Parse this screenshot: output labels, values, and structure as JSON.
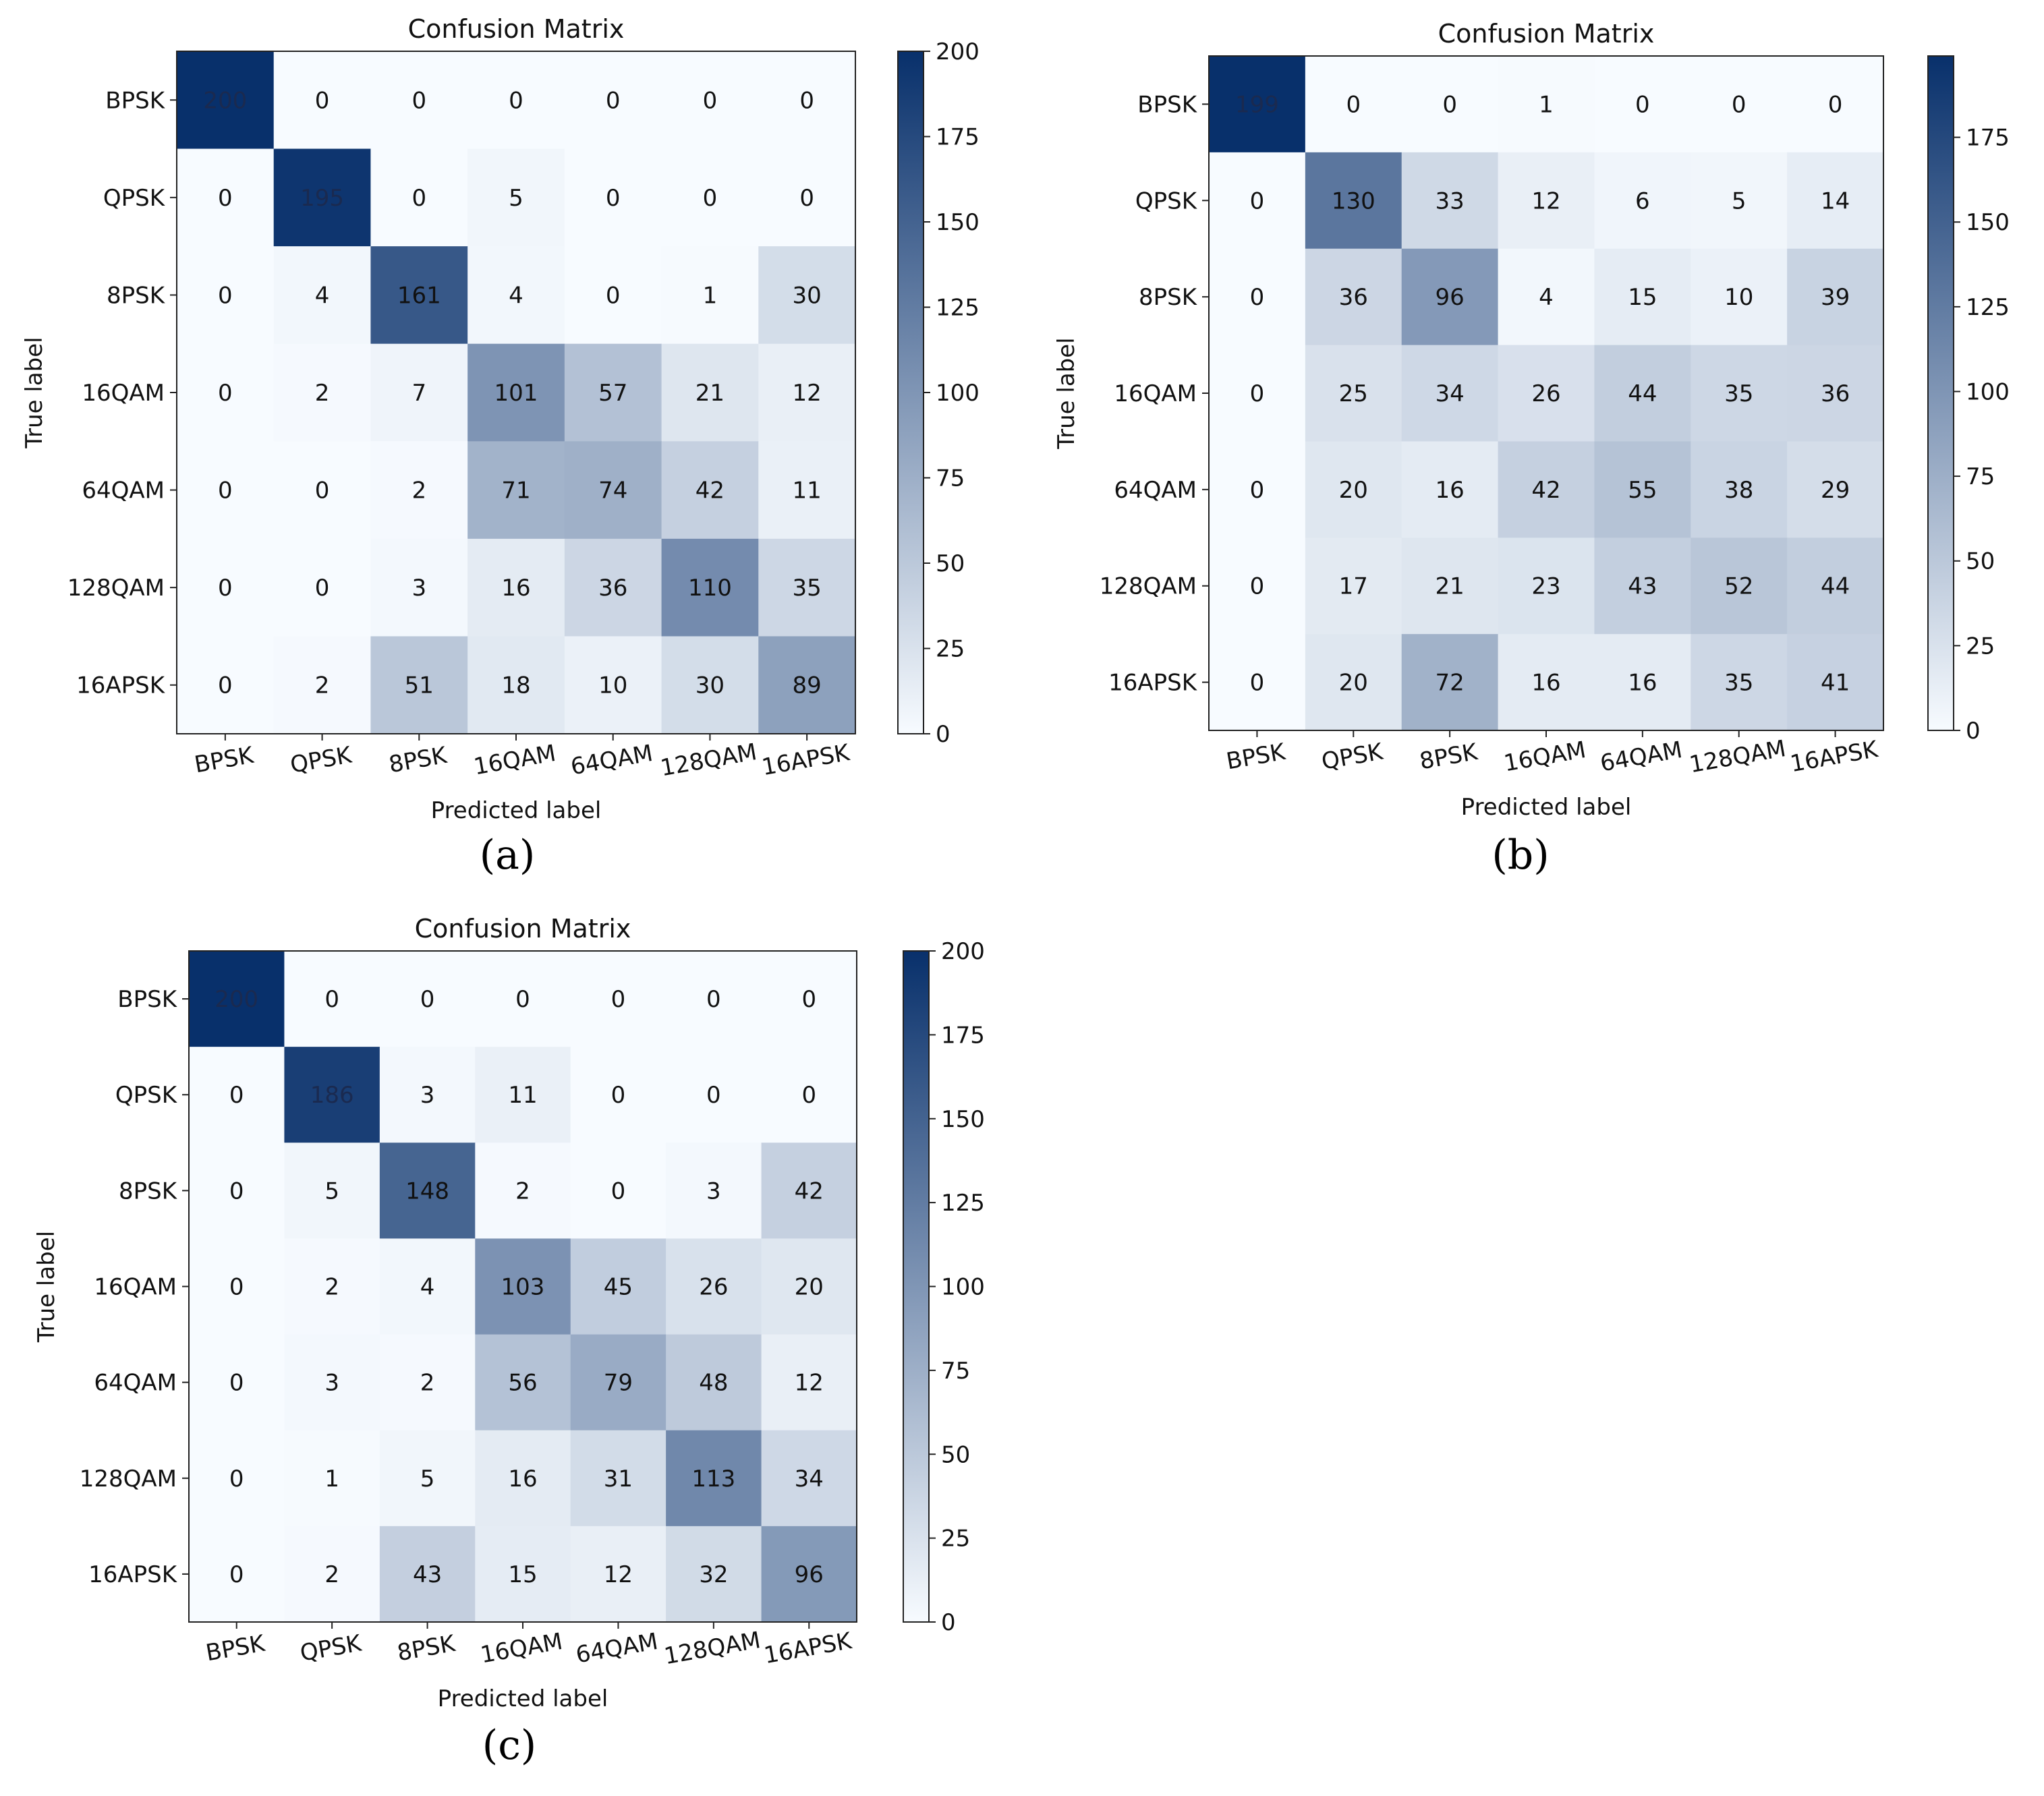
{
  "panel_captions": [
    "(a)",
    "(b)",
    "(c)"
  ],
  "chart_data": [
    {
      "type": "heatmap",
      "title": "Confusion Matrix",
      "xlabel": "Predicted label",
      "ylabel": "True label",
      "x_categories": [
        "BPSK",
        "QPSK",
        "8PSK",
        "16QAM",
        "64QAM",
        "128QAM",
        "16APSK"
      ],
      "y_categories": [
        "BPSK",
        "QPSK",
        "8PSK",
        "16QAM",
        "64QAM",
        "128QAM",
        "16APSK"
      ],
      "values": [
        [
          200,
          0,
          0,
          0,
          0,
          0,
          0
        ],
        [
          0,
          195,
          0,
          5,
          0,
          0,
          0
        ],
        [
          0,
          4,
          161,
          4,
          0,
          1,
          30
        ],
        [
          0,
          2,
          7,
          101,
          57,
          21,
          12
        ],
        [
          0,
          0,
          2,
          71,
          74,
          42,
          11
        ],
        [
          0,
          0,
          3,
          16,
          36,
          110,
          35
        ],
        [
          0,
          2,
          51,
          18,
          10,
          30,
          89
        ]
      ],
      "colorbar": {
        "min": 0,
        "max": 200,
        "ticks": [
          0,
          25,
          50,
          75,
          100,
          125,
          150,
          175,
          200
        ]
      },
      "colormap": {
        "low": "#f7fbff",
        "high": "#08306b",
        "name": "Blues"
      }
    },
    {
      "type": "heatmap",
      "title": "Confusion Matrix",
      "xlabel": "Predicted label",
      "ylabel": "True label",
      "x_categories": [
        "BPSK",
        "QPSK",
        "8PSK",
        "16QAM",
        "64QAM",
        "128QAM",
        "16APSK"
      ],
      "y_categories": [
        "BPSK",
        "QPSK",
        "8PSK",
        "16QAM",
        "64QAM",
        "128QAM",
        "16APSK"
      ],
      "values": [
        [
          199,
          0,
          0,
          1,
          0,
          0,
          0
        ],
        [
          0,
          130,
          33,
          12,
          6,
          5,
          14
        ],
        [
          0,
          36,
          96,
          4,
          15,
          10,
          39
        ],
        [
          0,
          25,
          34,
          26,
          44,
          35,
          36
        ],
        [
          0,
          20,
          16,
          42,
          55,
          38,
          29
        ],
        [
          0,
          17,
          21,
          23,
          43,
          52,
          44
        ],
        [
          0,
          20,
          72,
          16,
          16,
          35,
          41
        ]
      ],
      "colorbar": {
        "min": 0,
        "max": 199,
        "ticks": [
          0,
          25,
          50,
          75,
          100,
          125,
          150,
          175
        ]
      },
      "colormap": {
        "low": "#f7fbff",
        "high": "#08306b",
        "name": "Blues"
      }
    },
    {
      "type": "heatmap",
      "title": "Confusion Matrix",
      "xlabel": "Predicted label",
      "ylabel": "True label",
      "x_categories": [
        "BPSK",
        "QPSK",
        "8PSK",
        "16QAM",
        "64QAM",
        "128QAM",
        "16APSK"
      ],
      "y_categories": [
        "BPSK",
        "QPSK",
        "8PSK",
        "16QAM",
        "64QAM",
        "128QAM",
        "16APSK"
      ],
      "values": [
        [
          200,
          0,
          0,
          0,
          0,
          0,
          0
        ],
        [
          0,
          186,
          3,
          11,
          0,
          0,
          0
        ],
        [
          0,
          5,
          148,
          2,
          0,
          3,
          42
        ],
        [
          0,
          2,
          4,
          103,
          45,
          26,
          20
        ],
        [
          0,
          3,
          2,
          56,
          79,
          48,
          12
        ],
        [
          0,
          1,
          5,
          16,
          31,
          113,
          34
        ],
        [
          0,
          2,
          43,
          15,
          12,
          32,
          96
        ]
      ],
      "colorbar": {
        "min": 0,
        "max": 200,
        "ticks": [
          0,
          25,
          50,
          75,
          100,
          125,
          150,
          175,
          200
        ]
      },
      "colormap": {
        "low": "#f7fbff",
        "high": "#08306b",
        "name": "Blues"
      }
    }
  ]
}
